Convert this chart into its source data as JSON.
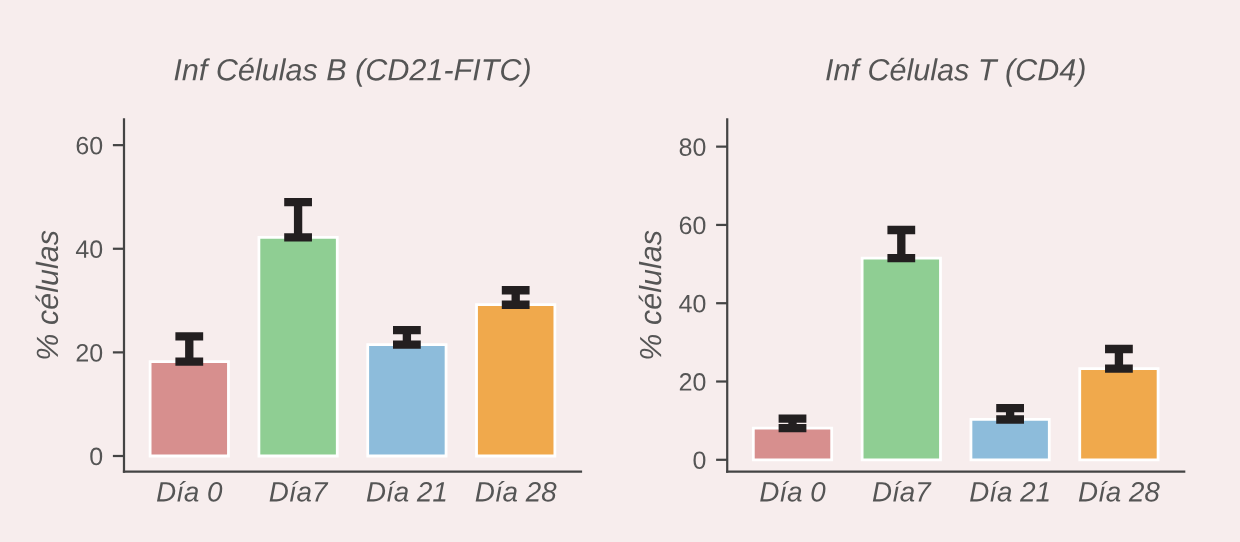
{
  "chart_data": [
    {
      "type": "bar",
      "title": "Inf Células B (CD21-FITC)",
      "ylabel": "% células",
      "categories": [
        "Día 0",
        "Día7",
        "Día 21",
        "Día 28"
      ],
      "values": [
        18.2,
        42.2,
        21.5,
        29.2
      ],
      "colors": [
        "#d78f8e",
        "#8fce93",
        "#8dbcdb",
        "#f0a94c"
      ],
      "errors": [
        [
          18.2,
          23.1
        ],
        [
          42.2,
          49.0
        ],
        [
          21.5,
          24.3
        ],
        [
          29.2,
          32.0
        ]
      ],
      "ylim": [
        -3,
        65
      ],
      "yticks": [
        0,
        20,
        40,
        60
      ],
      "grid": false,
      "legend": false
    },
    {
      "type": "bar",
      "title": "Inf Células T (CD4)",
      "ylabel": "% células",
      "categories": [
        "Día 0",
        "Día7",
        "Día 21",
        "Día 28"
      ],
      "values": [
        8.1,
        51.5,
        10.3,
        23.3
      ],
      "colors": [
        "#d78f8e",
        "#8fce93",
        "#8dbcdb",
        "#f0a94c"
      ],
      "errors": [
        [
          8.1,
          10.5
        ],
        [
          51.5,
          58.7
        ],
        [
          10.3,
          13.2
        ],
        [
          23.3,
          28.3
        ]
      ],
      "ylim": [
        -3,
        87
      ],
      "yticks": [
        0,
        20,
        40,
        60,
        80
      ],
      "grid": false,
      "legend": false
    }
  ]
}
